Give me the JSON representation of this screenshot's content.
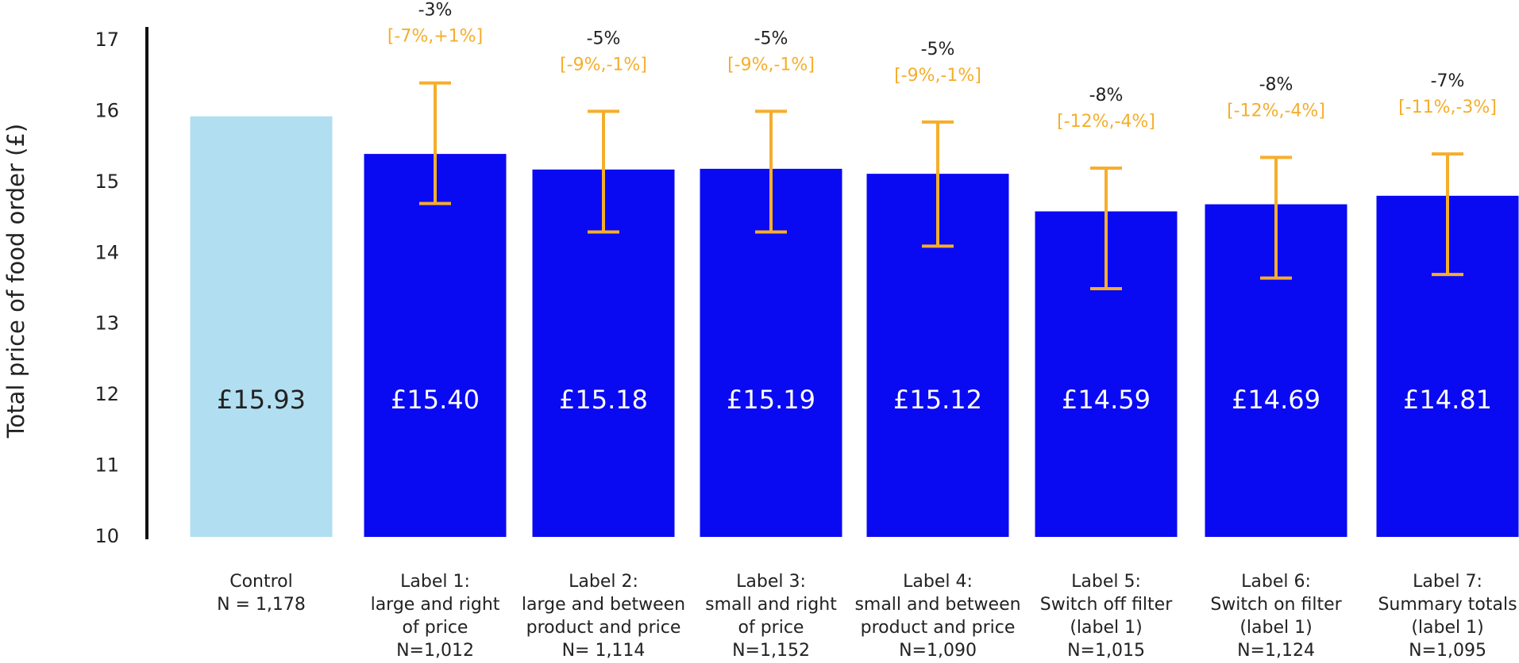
{
  "chart_data": {
    "type": "bar",
    "y_label": "Total  price of food order (£)",
    "categories": [
      [
        "Control",
        "N = 1,178"
      ],
      [
        "Label 1:",
        "large and right",
        "of price",
        "N=1,012"
      ],
      [
        "Label 2:",
        "large and between",
        "product and price",
        "N= 1,114"
      ],
      [
        "Label 3:",
        "small and right",
        "of price",
        "N=1,152"
      ],
      [
        "Label 4:",
        "small and between",
        "product and price",
        "N=1,090"
      ],
      [
        "Label 5:",
        "Switch off filter",
        "(label 1)",
        "N=1,015"
      ],
      [
        "Label 6:",
        "Switch on filter",
        "(label 1)",
        "N=1,124"
      ],
      [
        "Label 7:",
        "Summary totals",
        "(label 1)",
        "N=1,095"
      ]
    ],
    "values": [
      15.93,
      15.4,
      15.18,
      15.19,
      15.12,
      14.59,
      14.69,
      14.81
    ],
    "value_labels": [
      "£15.93",
      "£15.40",
      "£15.18",
      "£15.19",
      "£15.12",
      "£14.59",
      "£14.69",
      "£14.81"
    ],
    "colors": [
      "#b1dff1",
      "#0a0af2",
      "#0a0af2",
      "#0a0af2",
      "#0a0af2",
      "#0a0af2",
      "#0a0af2",
      "#0a0af2"
    ],
    "value_label_colors": [
      "#222222",
      "#ffffff",
      "#ffffff",
      "#ffffff",
      "#ffffff",
      "#ffffff",
      "#ffffff",
      "#ffffff"
    ],
    "error_low": [
      null,
      14.7,
      14.3,
      14.3,
      14.1,
      13.5,
      13.65,
      13.7
    ],
    "error_high": [
      null,
      16.4,
      16.0,
      16.0,
      15.85,
      15.2,
      15.35,
      15.4
    ],
    "error_color": "#f5ae2b",
    "change_labels": [
      null,
      "-3%",
      "-5%",
      "-5%",
      "-5%",
      "-8%",
      "-8%",
      "-7%"
    ],
    "ci_labels": [
      null,
      "[-7%,+1%]",
      "[-9%,-1%]",
      "[-9%,-1%]",
      "[-9%,-1%]",
      "[-12%,-4%]",
      "[-12%,-4%]",
      "[-11%,-3%]"
    ],
    "ylim": [
      10,
      17
    ],
    "yticks": [
      10,
      11,
      12,
      13,
      14,
      15,
      16,
      17
    ]
  }
}
